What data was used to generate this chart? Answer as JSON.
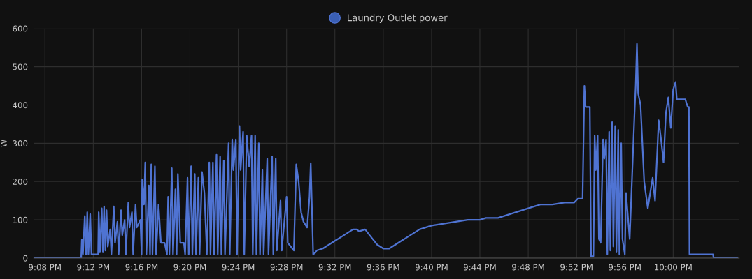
{
  "chart_data": {
    "type": "line",
    "ylabel": "W",
    "legend": "top",
    "grid": true,
    "marker": "none",
    "line_style": "solid",
    "xlim": [
      21.118,
      22.0911
    ],
    "ylim": [
      0,
      600
    ],
    "yticks": [
      0,
      100,
      200,
      300,
      400,
      500,
      600
    ],
    "xticks": [
      {
        "value": 21.1333,
        "label": "9:08 PM"
      },
      {
        "value": 21.2,
        "label": "9:12 PM"
      },
      {
        "value": 21.2667,
        "label": "9:16 PM"
      },
      {
        "value": 21.3333,
        "label": "9:20 PM"
      },
      {
        "value": 21.4,
        "label": "9:24 PM"
      },
      {
        "value": 21.4667,
        "label": "9:28 PM"
      },
      {
        "value": 21.5333,
        "label": "9:32 PM"
      },
      {
        "value": 21.6,
        "label": "9:36 PM"
      },
      {
        "value": 21.6667,
        "label": "9:40 PM"
      },
      {
        "value": 21.7333,
        "label": "9:44 PM"
      },
      {
        "value": 21.8,
        "label": "9:48 PM"
      },
      {
        "value": 21.8667,
        "label": "9:52 PM"
      },
      {
        "value": 21.9333,
        "label": "9:56 PM"
      },
      {
        "value": 22.0,
        "label": "10:00 PM"
      }
    ],
    "x": [
      21.1183,
      21.1833,
      21.1842,
      21.1858,
      21.1883,
      21.19,
      21.1917,
      21.1933,
      21.1958,
      21.1975,
      21.2067,
      21.2075,
      21.2092,
      21.2117,
      21.2133,
      21.215,
      21.2167,
      21.2183,
      21.22,
      21.2233,
      21.225,
      21.2283,
      21.23,
      21.2333,
      21.235,
      21.2383,
      21.24,
      21.2433,
      21.245,
      21.2483,
      21.25,
      21.2533,
      21.255,
      21.2583,
      21.26,
      21.265,
      21.2667,
      21.2675,
      21.27,
      21.2717,
      21.2733,
      21.2767,
      21.2783,
      21.28,
      21.2817,
      21.285,
      21.2867,
      21.29,
      21.2933,
      21.2983,
      21.3017,
      21.3033,
      21.305,
      21.3083,
      21.31,
      21.3133,
      21.315,
      21.3167,
      21.32,
      21.325,
      21.3267,
      21.33,
      21.3317,
      21.335,
      21.3367,
      21.34,
      21.3417,
      21.345,
      21.3467,
      21.35,
      21.3533,
      21.3567,
      21.36,
      21.3617,
      21.365,
      21.3667,
      21.37,
      21.3717,
      21.375,
      21.3767,
      21.38,
      21.3817,
      21.3867,
      21.3883,
      21.3917,
      21.3933,
      21.3967,
      21.3983,
      21.4017,
      21.4033,
      21.4067,
      21.4083,
      21.4117,
      21.415,
      21.4183,
      21.42,
      21.4233,
      21.425,
      21.4283,
      21.43,
      21.4333,
      21.435,
      21.44,
      21.4417,
      21.4467,
      21.4483,
      21.4517,
      21.4533,
      21.4583,
      21.46,
      21.4667,
      21.4683,
      21.4767,
      21.48,
      21.4833,
      21.4867,
      21.49,
      21.495,
      21.4983,
      21.5,
      21.5033,
      21.5067,
      21.5083,
      21.5167,
      21.525,
      21.5333,
      21.5417,
      21.55,
      21.5583,
      21.5633,
      21.5667,
      21.575,
      21.5833,
      21.5917,
      21.6,
      21.6083,
      21.6167,
      21.625,
      21.6333,
      21.6417,
      21.65,
      21.6583,
      21.6667,
      21.6833,
      21.7,
      21.7167,
      21.7333,
      21.7417,
      21.7583,
      21.7667,
      21.775,
      21.7833,
      21.7917,
      21.8,
      21.8083,
      21.8167,
      21.8333,
      21.85,
      21.8633,
      21.8683,
      21.875,
      21.8775,
      21.8792,
      21.885,
      21.8867,
      21.89,
      21.8917,
      21.8933,
      21.8958,
      21.8975,
      21.9,
      21.9033,
      21.905,
      21.9075,
      21.9092,
      21.9117,
      21.9133,
      21.9158,
      21.9175,
      21.92,
      21.9217,
      21.9242,
      21.9258,
      21.9283,
      21.93,
      21.9333,
      21.935,
      21.94,
      21.9467,
      21.9483,
      21.95,
      21.9517,
      21.955,
      21.96,
      21.965,
      21.9683,
      21.9717,
      21.975,
      21.98,
      21.9833,
      21.9867,
      21.99,
      21.9933,
      21.9967,
      22.0,
      22.0033,
      22.005,
      22.0167,
      22.02,
      22.0217,
      22.0225,
      22.0367,
      22.055,
      22.0558,
      22.0883
    ],
    "series": [
      {
        "name": "Laundry Outlet power",
        "color": "#4f73d2",
        "values": [
          0,
          0,
          48,
          10,
          110,
          10,
          120,
          10,
          115,
          10,
          10,
          120,
          15,
          130,
          15,
          135,
          20,
          125,
          30,
          75,
          10,
          135,
          40,
          95,
          10,
          125,
          60,
          100,
          10,
          145,
          80,
          120,
          10,
          140,
          80,
          100,
          10,
          205,
          140,
          250,
          10,
          190,
          10,
          245,
          10,
          240,
          10,
          140,
          40,
          40,
          10,
          160,
          10,
          235,
          10,
          180,
          10,
          220,
          40,
          40,
          10,
          210,
          10,
          240,
          10,
          220,
          10,
          210,
          10,
          225,
          170,
          10,
          250,
          10,
          250,
          10,
          270,
          10,
          265,
          10,
          255,
          10,
          300,
          10,
          310,
          230,
          310,
          10,
          345,
          230,
          330,
          10,
          320,
          240,
          320,
          10,
          320,
          10,
          300,
          10,
          230,
          10,
          260,
          10,
          265,
          10,
          260,
          20,
          150,
          20,
          160,
          40,
          20,
          245,
          200,
          120,
          95,
          80,
          160,
          248,
          10,
          15,
          20,
          25,
          35,
          45,
          55,
          65,
          75,
          75,
          70,
          75,
          55,
          35,
          25,
          25,
          35,
          45,
          55,
          65,
          75,
          80,
          85,
          90,
          95,
          100,
          100,
          105,
          105,
          110,
          115,
          120,
          125,
          130,
          135,
          140,
          140,
          145,
          145,
          155,
          155,
          450,
          395,
          395,
          5,
          5,
          320,
          230,
          320,
          50,
          40,
          310,
          260,
          310,
          10,
          330,
          20,
          355,
          30,
          345,
          15,
          335,
          10,
          300,
          50,
          10,
          170,
          50,
          380,
          450,
          560,
          430,
          400,
          200,
          130,
          170,
          210,
          150,
          360,
          310,
          250,
          380,
          420,
          340,
          440,
          460,
          415,
          415,
          395,
          395,
          10,
          10,
          10,
          0,
          0
        ]
      }
    ]
  }
}
